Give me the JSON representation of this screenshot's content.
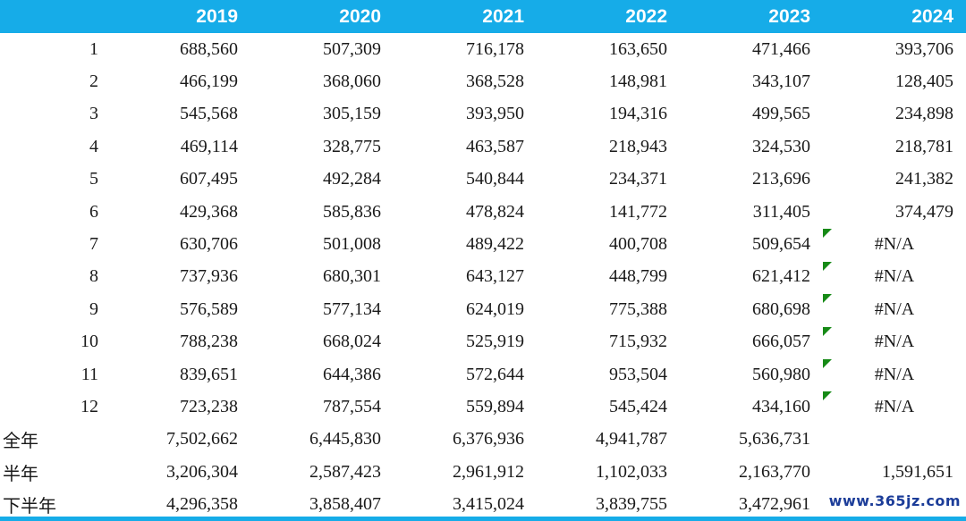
{
  "colors": {
    "header_bg": "#16ACE8",
    "header_text": "#FFFFFF",
    "body_text": "#1A1A1A",
    "error_indicator_green": "#168A16",
    "watermark_blue": "#1C3D99"
  },
  "watermark": "www.365jz.com",
  "table": {
    "header": [
      "",
      "2019",
      "2020",
      "2021",
      "2022",
      "2023",
      "2024"
    ],
    "rows": [
      {
        "label": "1",
        "align": "right",
        "cells": [
          "688,560",
          "507,309",
          "716,178",
          "163,650",
          "471,466",
          "393,706"
        ]
      },
      {
        "label": "2",
        "align": "right",
        "cells": [
          "466,199",
          "368,060",
          "368,528",
          "148,981",
          "343,107",
          "128,405"
        ]
      },
      {
        "label": "3",
        "align": "right",
        "cells": [
          "545,568",
          "305,159",
          "393,950",
          "194,316",
          "499,565",
          "234,898"
        ]
      },
      {
        "label": "4",
        "align": "right",
        "cells": [
          "469,114",
          "328,775",
          "463,587",
          "218,943",
          "324,530",
          "218,781"
        ]
      },
      {
        "label": "5",
        "align": "right",
        "cells": [
          "607,495",
          "492,284",
          "540,844",
          "234,371",
          "213,696",
          "241,382"
        ]
      },
      {
        "label": "6",
        "align": "right",
        "cells": [
          "429,368",
          "585,836",
          "478,824",
          "141,772",
          "311,405",
          "374,479"
        ]
      },
      {
        "label": "7",
        "align": "right",
        "cells": [
          "630,706",
          "501,008",
          "489,422",
          "400,708",
          "509,654",
          "#N/A"
        ]
      },
      {
        "label": "8",
        "align": "right",
        "cells": [
          "737,936",
          "680,301",
          "643,127",
          "448,799",
          "621,412",
          "#N/A"
        ]
      },
      {
        "label": "9",
        "align": "right",
        "cells": [
          "576,589",
          "577,134",
          "624,019",
          "775,388",
          "680,698",
          "#N/A"
        ]
      },
      {
        "label": "10",
        "align": "right",
        "cells": [
          "788,238",
          "668,024",
          "525,919",
          "715,932",
          "666,057",
          "#N/A"
        ]
      },
      {
        "label": "11",
        "align": "right",
        "cells": [
          "839,651",
          "644,386",
          "572,644",
          "953,504",
          "560,980",
          "#N/A"
        ]
      },
      {
        "label": "12",
        "align": "right",
        "cells": [
          "723,238",
          "787,554",
          "559,894",
          "545,424",
          "434,160",
          "#N/A"
        ]
      },
      {
        "label": "全年",
        "align": "left",
        "cells": [
          "7,502,662",
          "6,445,830",
          "6,376,936",
          "4,941,787",
          "5,636,731",
          ""
        ]
      },
      {
        "label": "半年",
        "align": "left",
        "cells": [
          "3,206,304",
          "2,587,423",
          "2,961,912",
          "1,102,033",
          "2,163,770",
          "1,591,651"
        ]
      },
      {
        "label": "下半年",
        "align": "left",
        "cells": [
          "4,296,358",
          "3,858,407",
          "3,415,024",
          "3,839,755",
          "3,472,961",
          ""
        ]
      }
    ]
  },
  "chart_data": {
    "type": "table",
    "title": "Monthly values by year with annual and half-year totals",
    "categories": [
      "1",
      "2",
      "3",
      "4",
      "5",
      "6",
      "7",
      "8",
      "9",
      "10",
      "11",
      "12",
      "全年",
      "半年",
      "下半年"
    ],
    "series": [
      {
        "name": "2019",
        "monthly": [
          688560,
          466199,
          545568,
          469114,
          607495,
          429368,
          630706,
          737936,
          576589,
          788238,
          839651,
          723238
        ],
        "full_year": 7502662,
        "first_half": 3206304,
        "second_half": 4296358
      },
      {
        "name": "2020",
        "monthly": [
          507309,
          368060,
          305159,
          328775,
          492284,
          585836,
          501008,
          680301,
          577134,
          668024,
          644386,
          787554
        ],
        "full_year": 6445830,
        "first_half": 2587423,
        "second_half": 3858407
      },
      {
        "name": "2021",
        "monthly": [
          716178,
          368528,
          393950,
          463587,
          540844,
          478824,
          489422,
          643127,
          624019,
          525919,
          572644,
          559894
        ],
        "full_year": 6376936,
        "first_half": 2961912,
        "second_half": 3415024
      },
      {
        "name": "2022",
        "monthly": [
          163650,
          148981,
          194316,
          218943,
          234371,
          141772,
          400708,
          448799,
          775388,
          715932,
          953504,
          545424
        ],
        "full_year": 4941787,
        "first_half": 1102033,
        "second_half": 3839755
      },
      {
        "name": "2023",
        "monthly": [
          471466,
          343107,
          499565,
          324530,
          213696,
          311405,
          509654,
          621412,
          680698,
          666057,
          560980,
          434160
        ],
        "full_year": 5636731,
        "first_half": 2163770,
        "second_half": 3472961
      },
      {
        "name": "2024",
        "monthly": [
          393706,
          128405,
          234898,
          218781,
          241382,
          374479,
          "#N/A",
          "#N/A",
          "#N/A",
          "#N/A",
          "#N/A",
          "#N/A"
        ],
        "full_year": null,
        "first_half": 1591651,
        "second_half": null
      }
    ],
    "error_marker_rows": [
      7,
      8,
      9,
      10,
      11,
      12
    ],
    "legend_position": "none",
    "grid": false
  }
}
